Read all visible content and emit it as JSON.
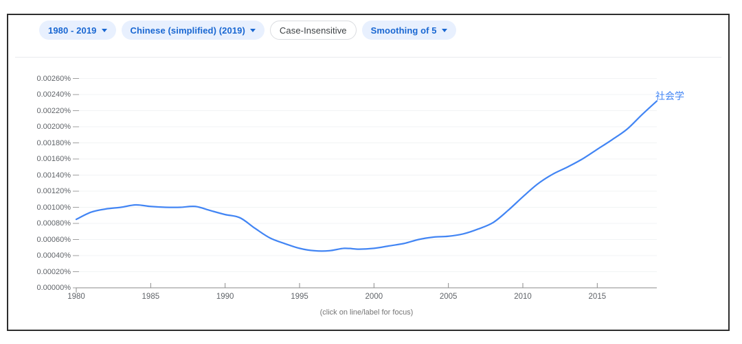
{
  "toolbar": {
    "year_range_label": "1980 - 2019",
    "corpus_label": "Chinese (simplified) (2019)",
    "case_label": "Case-Insensitive",
    "smoothing_label": "Smoothing of 5"
  },
  "caption": "(click on line/label for focus)",
  "colors": {
    "chip_blue_bg": "#e8f0fe",
    "chip_blue_text": "#1967d2",
    "chip_neutral_border": "#dadce0",
    "chip_neutral_text": "#3c4043",
    "line": "#4285f4",
    "gridline": "#f1f3f4",
    "axis": "#8a8a8a",
    "tick": "#9e9e9e",
    "axis_label": "#5f6368",
    "caption_text": "#757575"
  },
  "chart_data": {
    "type": "line",
    "title": "",
    "xlabel": "",
    "ylabel": "",
    "grid": true,
    "legend_position": "end-of-line",
    "x": [
      1980,
      1981,
      1982,
      1983,
      1984,
      1985,
      1986,
      1987,
      1988,
      1989,
      1990,
      1991,
      1992,
      1993,
      1994,
      1995,
      1996,
      1997,
      1998,
      1999,
      2000,
      2001,
      2002,
      2003,
      2004,
      2005,
      2006,
      2007,
      2008,
      2009,
      2010,
      2011,
      2012,
      2013,
      2014,
      2015,
      2016,
      2017,
      2018,
      2019
    ],
    "series": [
      {
        "name": "社会学",
        "color": "#4285f4",
        "values": [
          0.00085,
          0.00094,
          0.00098,
          0.001,
          0.00103,
          0.00101,
          0.001,
          0.001,
          0.00101,
          0.00096,
          0.00091,
          0.00087,
          0.00074,
          0.00062,
          0.00055,
          0.00049,
          0.00046,
          0.00046,
          0.00049,
          0.00048,
          0.00049,
          0.00052,
          0.00055,
          0.0006,
          0.00063,
          0.00064,
          0.00067,
          0.00073,
          0.00081,
          0.00096,
          0.00113,
          0.00129,
          0.00141,
          0.0015,
          0.0016,
          0.00172,
          0.00184,
          0.00197,
          0.00215,
          0.00232
        ]
      }
    ],
    "xlim": [
      1980,
      2019
    ],
    "ylim": [
      0,
      0.0026
    ],
    "y_unit": "%",
    "y_tick_step": 0.0002,
    "y_tick_labels": [
      "0.00000%",
      "0.00020%",
      "0.00040%",
      "0.00060%",
      "0.00080%",
      "0.00100%",
      "0.00120%",
      "0.00140%",
      "0.00160%",
      "0.00180%",
      "0.00200%",
      "0.00220%",
      "0.00240%",
      "0.00260%"
    ],
    "x_tick_years": [
      1980,
      1985,
      1990,
      1995,
      2000,
      2005,
      2010,
      2015
    ],
    "x_tick_labels": [
      "1980",
      "1985",
      "1990",
      "1995",
      "2000",
      "2005",
      "2010",
      "2015"
    ]
  }
}
